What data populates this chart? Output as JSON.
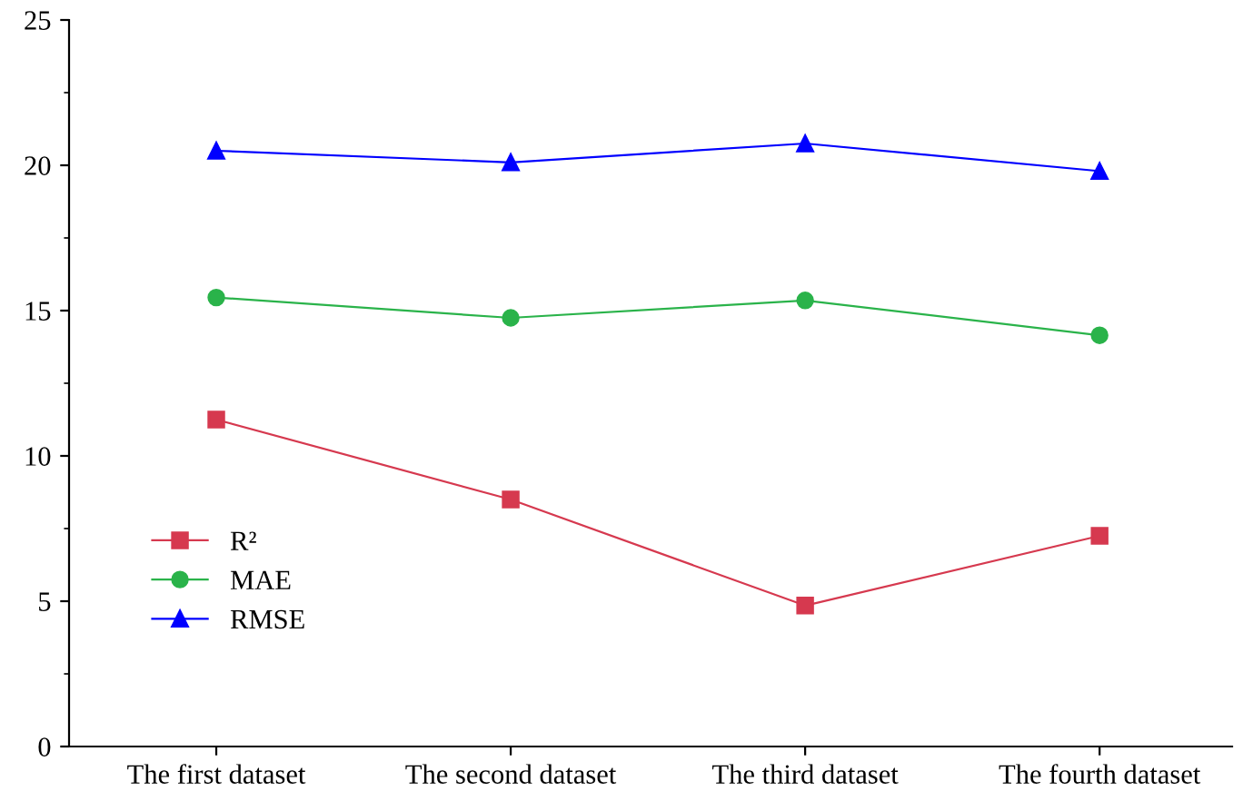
{
  "chart_data": {
    "type": "line",
    "categories": [
      "The first dataset",
      "The second dataset",
      "The third dataset",
      "The fourth dataset"
    ],
    "series": [
      {
        "name": "R²",
        "color": "#d6394f",
        "marker": "square",
        "values": [
          11.25,
          8.5,
          4.85,
          7.25
        ]
      },
      {
        "name": "MAE",
        "color": "#2ab34a",
        "marker": "circle",
        "values": [
          15.45,
          14.75,
          15.35,
          14.15
        ]
      },
      {
        "name": "RMSE",
        "color": "#0000ff",
        "marker": "triangle",
        "values": [
          20.5,
          20.1,
          20.75,
          19.8
        ]
      }
    ],
    "ylim": [
      0,
      25
    ],
    "yticks": [
      0,
      5,
      10,
      15,
      20,
      25
    ],
    "grid": false,
    "legend": "bottom left",
    "line_style": "solid"
  }
}
